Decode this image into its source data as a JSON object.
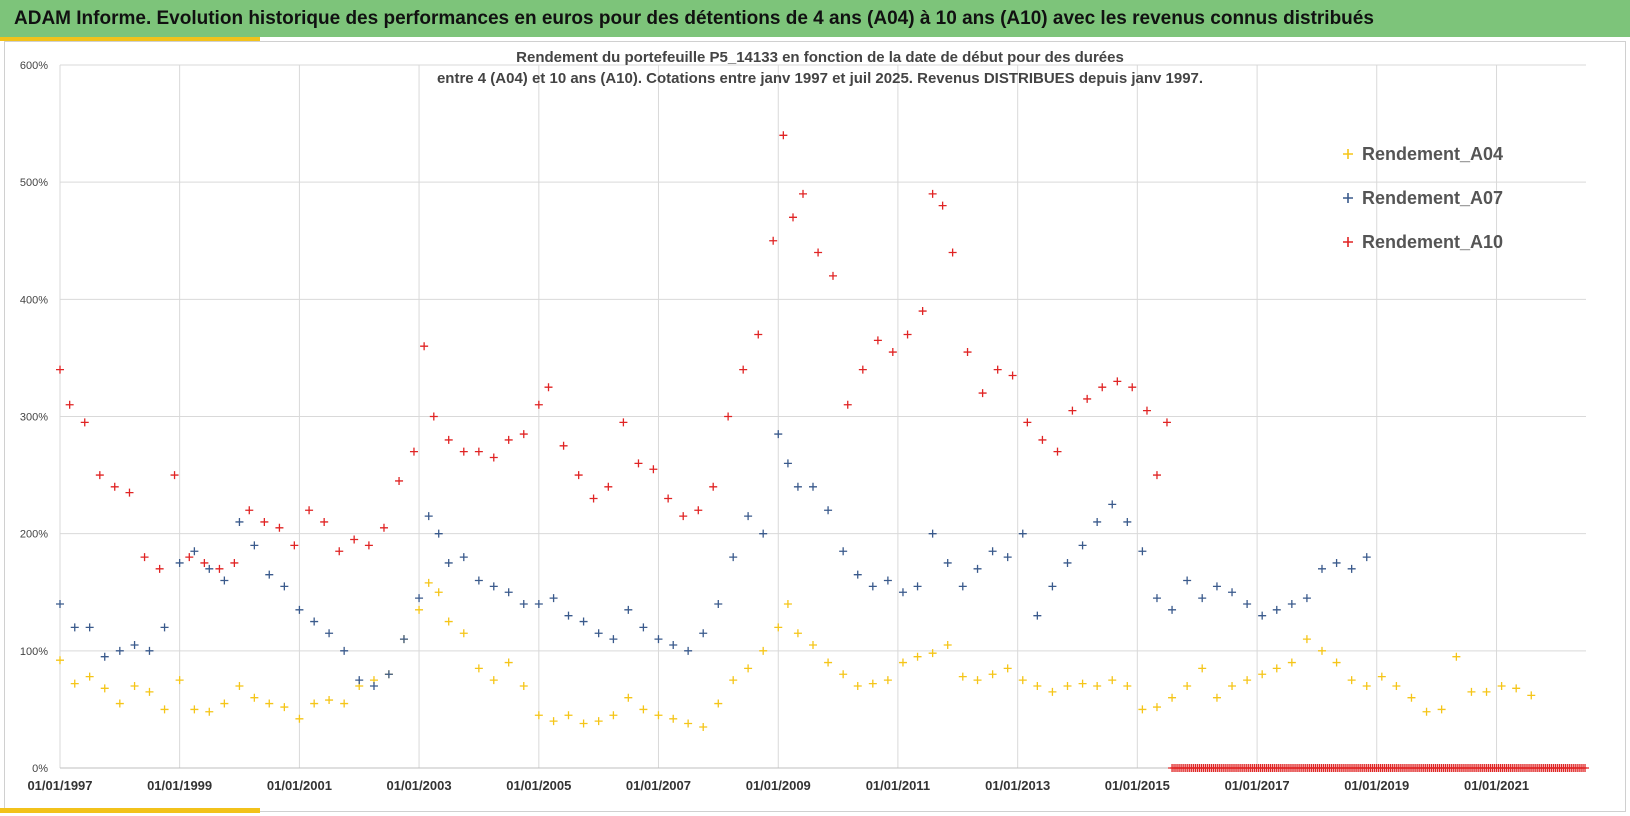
{
  "header": {
    "title": "ADAM Informe. Evolution historique des performances en euros pour des détentions de 4 ans (A04) à 10 ans (A10) avec les revenus connus distribués"
  },
  "colors": {
    "header_bg": "#7dc47a",
    "accent": "#f2c21b",
    "grid": "#d9d9d9"
  },
  "chart_data": {
    "type": "scatter",
    "title_lines": [
      "Rendement du portefeuille P5_14133 en fonction de la date de début pour des durées",
      "entre 4 (A04) et 10 ans (A10). Cotations entre janv 1997 et juil 2025. Revenus DISTRIBUES depuis janv 1997."
    ],
    "xlabel": "",
    "ylabel": "",
    "x_range": [
      "1997-01-01",
      "2022-07-01"
    ],
    "ylim": [
      0,
      6
    ],
    "y_ticks": [
      "0%",
      "100%",
      "200%",
      "300%",
      "400%",
      "500%",
      "600%"
    ],
    "x_ticks": [
      "01/01/1997",
      "01/01/1999",
      "01/01/2001",
      "01/01/2003",
      "01/01/2005",
      "01/01/2007",
      "01/01/2009",
      "01/01/2011",
      "01/01/2013",
      "01/01/2015",
      "01/01/2017",
      "01/01/2019",
      "01/01/2021"
    ],
    "grid": true,
    "legend_position": "top-right",
    "marker": "+",
    "series": [
      {
        "name": "Rendement_A04",
        "color": "#f5c518",
        "points": [
          [
            "1997-01-01",
            0.92
          ],
          [
            "1997-04-01",
            0.72
          ],
          [
            "1997-07-01",
            0.78
          ],
          [
            "1997-10-01",
            0.68
          ],
          [
            "1998-01-01",
            0.55
          ],
          [
            "1998-04-01",
            0.7
          ],
          [
            "1998-07-01",
            0.65
          ],
          [
            "1998-10-01",
            0.5
          ],
          [
            "1999-01-01",
            0.75
          ],
          [
            "1999-04-01",
            0.5
          ],
          [
            "1999-07-01",
            0.48
          ],
          [
            "1999-10-01",
            0.55
          ],
          [
            "2000-01-01",
            0.7
          ],
          [
            "2000-04-01",
            0.6
          ],
          [
            "2000-07-01",
            0.55
          ],
          [
            "2000-10-01",
            0.52
          ],
          [
            "2001-01-01",
            0.42
          ],
          [
            "2001-04-01",
            0.55
          ],
          [
            "2001-07-01",
            0.58
          ],
          [
            "2001-10-01",
            0.55
          ],
          [
            "2002-01-01",
            0.7
          ],
          [
            "2002-04-01",
            0.75
          ],
          [
            "2002-07-01",
            0.8
          ],
          [
            "2002-10-01",
            1.1
          ],
          [
            "2003-01-01",
            1.35
          ],
          [
            "2003-03-01",
            1.58
          ],
          [
            "2003-05-01",
            1.5
          ],
          [
            "2003-07-01",
            1.25
          ],
          [
            "2003-10-01",
            1.15
          ],
          [
            "2004-01-01",
            0.85
          ],
          [
            "2004-04-01",
            0.75
          ],
          [
            "2004-07-01",
            0.9
          ],
          [
            "2004-10-01",
            0.7
          ],
          [
            "2005-01-01",
            0.45
          ],
          [
            "2005-04-01",
            0.4
          ],
          [
            "2005-07-01",
            0.45
          ],
          [
            "2005-10-01",
            0.38
          ],
          [
            "2006-01-01",
            0.4
          ],
          [
            "2006-04-01",
            0.45
          ],
          [
            "2006-07-01",
            0.6
          ],
          [
            "2006-10-01",
            0.5
          ],
          [
            "2007-01-01",
            0.45
          ],
          [
            "2007-04-01",
            0.42
          ],
          [
            "2007-07-01",
            0.38
          ],
          [
            "2007-10-01",
            0.35
          ],
          [
            "2008-01-01",
            0.55
          ],
          [
            "2008-04-01",
            0.75
          ],
          [
            "2008-07-01",
            0.85
          ],
          [
            "2008-10-01",
            1.0
          ],
          [
            "2009-01-01",
            1.2
          ],
          [
            "2009-03-01",
            1.4
          ],
          [
            "2009-05-01",
            1.15
          ],
          [
            "2009-08-01",
            1.05
          ],
          [
            "2009-11-01",
            0.9
          ],
          [
            "2010-02-01",
            0.8
          ],
          [
            "2010-05-01",
            0.7
          ],
          [
            "2010-08-01",
            0.72
          ],
          [
            "2010-11-01",
            0.75
          ],
          [
            "2011-02-01",
            0.9
          ],
          [
            "2011-05-01",
            0.95
          ],
          [
            "2011-08-01",
            0.98
          ],
          [
            "2011-11-01",
            1.05
          ],
          [
            "2012-02-01",
            0.78
          ],
          [
            "2012-05-01",
            0.75
          ],
          [
            "2012-08-01",
            0.8
          ],
          [
            "2012-11-01",
            0.85
          ],
          [
            "2013-02-01",
            0.75
          ],
          [
            "2013-05-01",
            0.7
          ],
          [
            "2013-08-01",
            0.65
          ],
          [
            "2013-11-01",
            0.7
          ],
          [
            "2014-02-01",
            0.72
          ],
          [
            "2014-05-01",
            0.7
          ],
          [
            "2014-08-01",
            0.75
          ],
          [
            "2014-11-01",
            0.7
          ],
          [
            "2015-02-01",
            0.5
          ],
          [
            "2015-05-01",
            0.52
          ],
          [
            "2015-08-01",
            0.6
          ],
          [
            "2015-11-01",
            0.7
          ],
          [
            "2016-02-01",
            0.85
          ],
          [
            "2016-05-01",
            0.6
          ],
          [
            "2016-08-01",
            0.7
          ],
          [
            "2016-11-01",
            0.75
          ],
          [
            "2017-02-01",
            0.8
          ],
          [
            "2017-05-01",
            0.85
          ],
          [
            "2017-08-01",
            0.9
          ],
          [
            "2017-11-01",
            1.1
          ],
          [
            "2018-02-01",
            1.0
          ],
          [
            "2018-05-01",
            0.9
          ],
          [
            "2018-08-01",
            0.75
          ],
          [
            "2018-11-01",
            0.7
          ],
          [
            "2019-02-01",
            0.78
          ],
          [
            "2019-05-01",
            0.7
          ],
          [
            "2019-08-01",
            0.6
          ],
          [
            "2019-11-01",
            0.48
          ],
          [
            "2020-02-01",
            0.5
          ],
          [
            "2020-05-01",
            0.95
          ],
          [
            "2020-08-01",
            0.65
          ],
          [
            "2020-11-01",
            0.65
          ],
          [
            "2021-02-01",
            0.7
          ],
          [
            "2021-05-01",
            0.68
          ],
          [
            "2021-08-01",
            0.62
          ]
        ]
      },
      {
        "name": "Rendement_A07",
        "color": "#3a5a8c",
        "points": [
          [
            "1997-01-01",
            1.4
          ],
          [
            "1997-04-01",
            1.2
          ],
          [
            "1997-07-01",
            1.2
          ],
          [
            "1997-10-01",
            0.95
          ],
          [
            "1998-01-01",
            1.0
          ],
          [
            "1998-04-01",
            1.05
          ],
          [
            "1998-07-01",
            1.0
          ],
          [
            "1998-10-01",
            1.2
          ],
          [
            "1999-01-01",
            1.75
          ],
          [
            "1999-04-01",
            1.85
          ],
          [
            "1999-07-01",
            1.7
          ],
          [
            "1999-10-01",
            1.6
          ],
          [
            "2000-01-01",
            2.1
          ],
          [
            "2000-04-01",
            1.9
          ],
          [
            "2000-07-01",
            1.65
          ],
          [
            "2000-10-01",
            1.55
          ],
          [
            "2001-01-01",
            1.35
          ],
          [
            "2001-04-01",
            1.25
          ],
          [
            "2001-07-01",
            1.15
          ],
          [
            "2001-10-01",
            1.0
          ],
          [
            "2002-01-01",
            0.75
          ],
          [
            "2002-04-01",
            0.7
          ],
          [
            "2002-07-01",
            0.8
          ],
          [
            "2002-10-01",
            1.1
          ],
          [
            "2003-01-01",
            1.45
          ],
          [
            "2003-03-01",
            2.15
          ],
          [
            "2003-05-01",
            2.0
          ],
          [
            "2003-07-01",
            1.75
          ],
          [
            "2003-10-01",
            1.8
          ],
          [
            "2004-01-01",
            1.6
          ],
          [
            "2004-04-01",
            1.55
          ],
          [
            "2004-07-01",
            1.5
          ],
          [
            "2004-10-01",
            1.4
          ],
          [
            "2005-01-01",
            1.4
          ],
          [
            "2005-04-01",
            1.45
          ],
          [
            "2005-07-01",
            1.3
          ],
          [
            "2005-10-01",
            1.25
          ],
          [
            "2006-01-01",
            1.15
          ],
          [
            "2006-04-01",
            1.1
          ],
          [
            "2006-07-01",
            1.35
          ],
          [
            "2006-10-01",
            1.2
          ],
          [
            "2007-01-01",
            1.1
          ],
          [
            "2007-04-01",
            1.05
          ],
          [
            "2007-07-01",
            1.0
          ],
          [
            "2007-10-01",
            1.15
          ],
          [
            "2008-01-01",
            1.4
          ],
          [
            "2008-04-01",
            1.8
          ],
          [
            "2008-07-01",
            2.15
          ],
          [
            "2008-10-01",
            2.0
          ],
          [
            "2009-01-01",
            2.85
          ],
          [
            "2009-03-01",
            2.6
          ],
          [
            "2009-05-01",
            2.4
          ],
          [
            "2009-08-01",
            2.4
          ],
          [
            "2009-11-01",
            2.2
          ],
          [
            "2010-02-01",
            1.85
          ],
          [
            "2010-05-01",
            1.65
          ],
          [
            "2010-08-01",
            1.55
          ],
          [
            "2010-11-01",
            1.6
          ],
          [
            "2011-02-01",
            1.5
          ],
          [
            "2011-05-01",
            1.55
          ],
          [
            "2011-08-01",
            2.0
          ],
          [
            "2011-11-01",
            1.75
          ],
          [
            "2012-02-01",
            1.55
          ],
          [
            "2012-05-01",
            1.7
          ],
          [
            "2012-08-01",
            1.85
          ],
          [
            "2012-11-01",
            1.8
          ],
          [
            "2013-02-01",
            2.0
          ],
          [
            "2013-05-01",
            1.3
          ],
          [
            "2013-08-01",
            1.55
          ],
          [
            "2013-11-01",
            1.75
          ],
          [
            "2014-02-01",
            1.9
          ],
          [
            "2014-05-01",
            2.1
          ],
          [
            "2014-08-01",
            2.25
          ],
          [
            "2014-11-01",
            2.1
          ],
          [
            "2015-02-01",
            1.85
          ],
          [
            "2015-05-01",
            1.45
          ],
          [
            "2015-08-01",
            1.35
          ],
          [
            "2015-11-01",
            1.6
          ],
          [
            "2016-02-01",
            1.45
          ],
          [
            "2016-05-01",
            1.55
          ],
          [
            "2016-08-01",
            1.5
          ],
          [
            "2016-11-01",
            1.4
          ],
          [
            "2017-02-01",
            1.3
          ],
          [
            "2017-05-01",
            1.35
          ],
          [
            "2017-08-01",
            1.4
          ],
          [
            "2017-11-01",
            1.45
          ],
          [
            "2018-02-01",
            1.7
          ],
          [
            "2018-05-01",
            1.75
          ],
          [
            "2018-08-01",
            1.7
          ],
          [
            "2018-11-01",
            1.8
          ]
        ]
      },
      {
        "name": "Rendement_A10",
        "color": "#e02424",
        "points": [
          [
            "1997-01-01",
            3.4
          ],
          [
            "1997-03-01",
            3.1
          ],
          [
            "1997-06-01",
            2.95
          ],
          [
            "1997-09-01",
            2.5
          ],
          [
            "1997-12-01",
            2.4
          ],
          [
            "1998-03-01",
            2.35
          ],
          [
            "1998-06-01",
            1.8
          ],
          [
            "1998-09-01",
            1.7
          ],
          [
            "1998-12-01",
            2.5
          ],
          [
            "1999-03-01",
            1.8
          ],
          [
            "1999-06-01",
            1.75
          ],
          [
            "1999-09-01",
            1.7
          ],
          [
            "1999-12-01",
            1.75
          ],
          [
            "2000-03-01",
            2.2
          ],
          [
            "2000-06-01",
            2.1
          ],
          [
            "2000-09-01",
            2.05
          ],
          [
            "2000-12-01",
            1.9
          ],
          [
            "2001-03-01",
            2.2
          ],
          [
            "2001-06-01",
            2.1
          ],
          [
            "2001-09-01",
            1.85
          ],
          [
            "2001-12-01",
            1.95
          ],
          [
            "2002-03-01",
            1.9
          ],
          [
            "2002-06-01",
            2.05
          ],
          [
            "2002-09-01",
            2.45
          ],
          [
            "2002-12-01",
            2.7
          ],
          [
            "2003-02-01",
            3.6
          ],
          [
            "2003-04-01",
            3.0
          ],
          [
            "2003-07-01",
            2.8
          ],
          [
            "2003-10-01",
            2.7
          ],
          [
            "2004-01-01",
            2.7
          ],
          [
            "2004-04-01",
            2.65
          ],
          [
            "2004-07-01",
            2.8
          ],
          [
            "2004-10-01",
            2.85
          ],
          [
            "2005-01-01",
            3.1
          ],
          [
            "2005-03-01",
            3.25
          ],
          [
            "2005-06-01",
            2.75
          ],
          [
            "2005-09-01",
            2.5
          ],
          [
            "2005-12-01",
            2.3
          ],
          [
            "2006-03-01",
            2.4
          ],
          [
            "2006-06-01",
            2.95
          ],
          [
            "2006-09-01",
            2.6
          ],
          [
            "2006-12-01",
            2.55
          ],
          [
            "2007-03-01",
            2.3
          ],
          [
            "2007-06-01",
            2.15
          ],
          [
            "2007-09-01",
            2.2
          ],
          [
            "2007-12-01",
            2.4
          ],
          [
            "2008-03-01",
            3.0
          ],
          [
            "2008-06-01",
            3.4
          ],
          [
            "2008-09-01",
            3.7
          ],
          [
            "2008-12-01",
            4.5
          ],
          [
            "2009-02-01",
            5.4
          ],
          [
            "2009-04-01",
            4.7
          ],
          [
            "2009-06-01",
            4.9
          ],
          [
            "2009-09-01",
            4.4
          ],
          [
            "2009-12-01",
            4.2
          ],
          [
            "2010-03-01",
            3.1
          ],
          [
            "2010-06-01",
            3.4
          ],
          [
            "2010-09-01",
            3.65
          ],
          [
            "2010-12-01",
            3.55
          ],
          [
            "2011-03-01",
            3.7
          ],
          [
            "2011-06-01",
            3.9
          ],
          [
            "2011-08-01",
            4.9
          ],
          [
            "2011-10-01",
            4.8
          ],
          [
            "2011-12-01",
            4.4
          ],
          [
            "2012-03-01",
            3.55
          ],
          [
            "2012-06-01",
            3.2
          ],
          [
            "2012-09-01",
            3.4
          ],
          [
            "2012-12-01",
            3.35
          ],
          [
            "2013-03-01",
            2.95
          ],
          [
            "2013-06-01",
            2.8
          ],
          [
            "2013-09-01",
            2.7
          ],
          [
            "2013-12-01",
            3.05
          ],
          [
            "2014-03-01",
            3.15
          ],
          [
            "2014-06-01",
            3.25
          ],
          [
            "2014-09-01",
            3.3
          ],
          [
            "2014-12-01",
            3.25
          ],
          [
            "2015-03-01",
            3.05
          ],
          [
            "2015-05-01",
            2.5
          ],
          [
            "2015-07-01",
            2.95
          ]
        ]
      }
    ],
    "zero_band": {
      "series": "Rendement_A10",
      "x_from": "2015-08-01",
      "x_to": "2022-07-01",
      "value": 0
    }
  }
}
